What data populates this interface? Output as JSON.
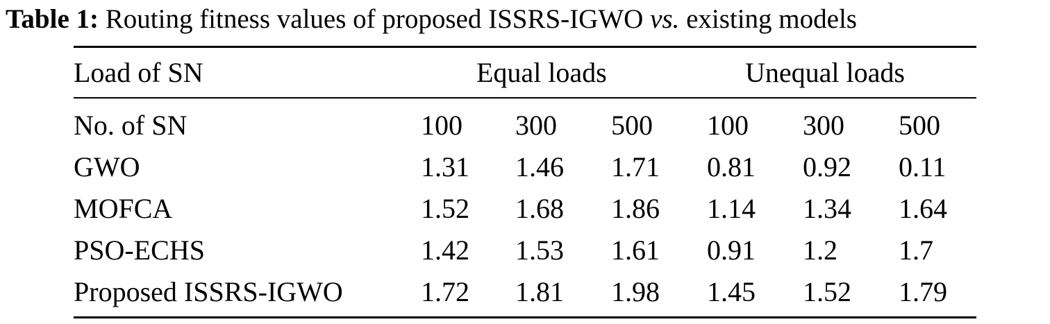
{
  "caption": {
    "label": "Table 1:",
    "text_before": "Routing fitness values of proposed ISSRS-IGWO",
    "text_italic": "vs.",
    "text_after": "existing models"
  },
  "table": {
    "header": {
      "row_label": "Load of SN",
      "group_equal": "Equal loads",
      "group_unequal": "Unequal loads"
    },
    "rows": [
      [
        "No. of SN",
        "100",
        "300",
        "500",
        "100",
        "300",
        "500"
      ],
      [
        "GWO",
        "1.31",
        "1.46",
        "1.71",
        "0.81",
        "0.92",
        "0.11"
      ],
      [
        "MOFCA",
        "1.52",
        "1.68",
        "1.86",
        "1.14",
        "1.34",
        "1.64"
      ],
      [
        "PSO-ECHS",
        "1.42",
        "1.53",
        "1.61",
        "0.91",
        "1.2",
        "1.7"
      ],
      [
        "Proposed ISSRS-IGWO",
        "1.72",
        "1.81",
        "1.98",
        "1.45",
        "1.52",
        "1.79"
      ]
    ]
  }
}
